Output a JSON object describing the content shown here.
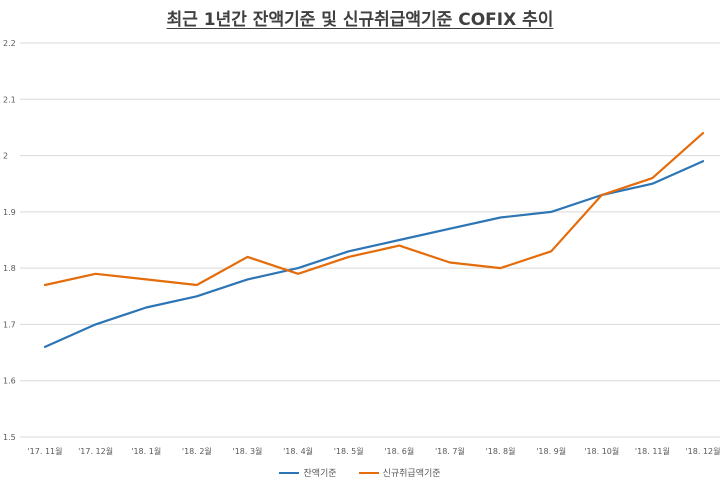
{
  "chart_data": {
    "type": "line",
    "title": "최근 1년간 잔액기준 및 신규취급액기준 COFIX 추이",
    "xlabel": "",
    "ylabel": "",
    "categories": [
      "'17. 11월",
      "'17. 12월",
      "'18. 1월",
      "'18. 2월",
      "'18. 3월",
      "'18. 4월",
      "'18. 5월",
      "'18. 6월",
      "'18. 7월",
      "'18. 8월",
      "'18. 9월",
      "'18. 10월",
      "'18. 11월",
      "'18. 12월"
    ],
    "ylim": [
      1.5,
      2.2
    ],
    "yticks": [
      "1.5",
      "1.6",
      "1.7",
      "1.8",
      "1.9",
      "2",
      "2.1",
      "2.2"
    ],
    "grid": true,
    "legend_position": "bottom",
    "series": [
      {
        "name": "잔액기준",
        "color": "#2e75b6",
        "values": [
          1.66,
          1.7,
          1.73,
          1.75,
          1.78,
          1.8,
          1.83,
          1.85,
          1.87,
          1.89,
          1.9,
          1.93,
          1.95,
          1.99
        ]
      },
      {
        "name": "신규취급액기준",
        "color": "#e46c0a",
        "values": [
          1.77,
          1.79,
          1.78,
          1.77,
          1.82,
          1.79,
          1.82,
          1.84,
          1.81,
          1.8,
          1.83,
          1.93,
          1.96,
          2.04
        ]
      }
    ]
  }
}
